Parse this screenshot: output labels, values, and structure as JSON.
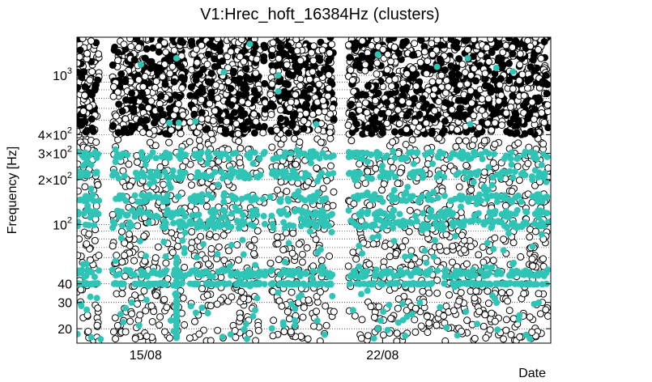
{
  "chart_data": {
    "type": "scatter",
    "title": "V1:Hrec_hoft_16384Hz (clusters)",
    "xlabel": "Date",
    "ylabel": "Frequency [Hz]",
    "yscale": "log",
    "xlim": [
      0,
      20
    ],
    "ylim": [
      16,
      1800
    ],
    "x_ticks": [
      {
        "value": 2.9,
        "label": "15/08"
      },
      {
        "value": 12.9,
        "label": "22/08"
      }
    ],
    "y_ticks": [
      {
        "value": 20,
        "base": "20",
        "sup": ""
      },
      {
        "value": 30,
        "base": "30",
        "sup": ""
      },
      {
        "value": 40,
        "base": "40",
        "sup": ""
      },
      {
        "value": 100,
        "base": "10",
        "sup": "2"
      },
      {
        "value": 200,
        "base": "2×10",
        "sup": "2"
      },
      {
        "value": 300,
        "base": "3×10",
        "sup": "2"
      },
      {
        "value": 400,
        "base": "4×10",
        "sup": "2"
      },
      {
        "value": 1000,
        "base": "10",
        "sup": "3"
      }
    ],
    "grid": true,
    "coverage_segments": [
      [
        0,
        0.93
      ],
      [
        1.5,
        4.6
      ],
      [
        4.75,
        7.75
      ],
      [
        7.85,
        7.95
      ],
      [
        8.15,
        8.3
      ],
      [
        8.4,
        10.85
      ],
      [
        11.45,
        19.9
      ]
    ],
    "series": [
      {
        "marker": "open-circle",
        "color": "#000000",
        "density_note": "dense background clusters",
        "points": []
      },
      {
        "marker": "filled-circle",
        "color": "#2ec4b6",
        "band_frequencies": [
          40,
          47,
          100,
          118,
          150,
          215,
          290
        ],
        "outliers": [
          {
            "x": 2.7,
            "y": 1180
          },
          {
            "x": 4.2,
            "y": 1300
          },
          {
            "x": 6.2,
            "y": 1050
          },
          {
            "x": 7.3,
            "y": 1620
          },
          {
            "x": 8.5,
            "y": 1000
          },
          {
            "x": 12.7,
            "y": 1380
          },
          {
            "x": 15.2,
            "y": 1140
          },
          {
            "x": 16.5,
            "y": 1300
          },
          {
            "x": 17.7,
            "y": 1120
          },
          {
            "x": 18.4,
            "y": 1060
          },
          {
            "x": 3.9,
            "y": 480
          },
          {
            "x": 4.3,
            "y": 480
          },
          {
            "x": 5.0,
            "y": 490
          },
          {
            "x": 16.6,
            "y": 470
          },
          {
            "x": 8.5,
            "y": 780
          },
          {
            "x": 10.1,
            "y": 470
          },
          {
            "x": 0.6,
            "y": 17.5
          },
          {
            "x": 1.0,
            "y": 17.0
          },
          {
            "x": 4.2,
            "y": 17.5
          },
          {
            "x": 9.2,
            "y": 21
          }
        ]
      }
    ]
  }
}
